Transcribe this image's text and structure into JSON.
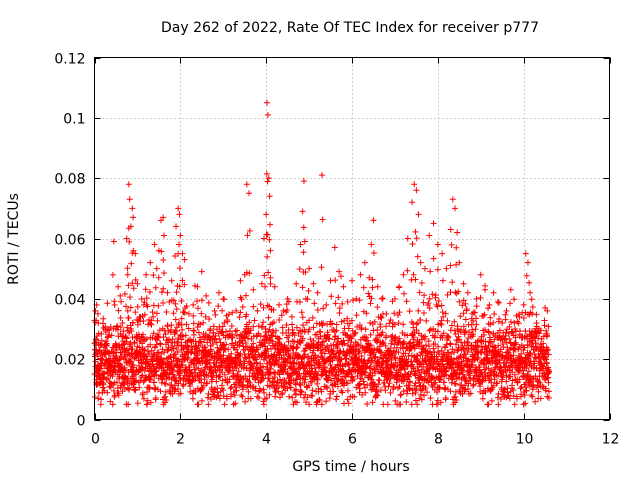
{
  "chart_data": {
    "type": "scatter",
    "title": "Day 262 of 2022, Rate Of TEC Index for receiver p777",
    "xlabel": "GPS time / hours",
    "ylabel": "ROTI / TECUs",
    "xlim": [
      0,
      12
    ],
    "ylim": [
      0,
      0.12
    ],
    "x_ticks": [
      "0",
      "2",
      "4",
      "6",
      "8",
      "10",
      "12"
    ],
    "y_ticks": [
      "0",
      "0.02",
      "0.04",
      "0.06",
      "0.08",
      "0.1",
      "0.12"
    ],
    "grid": true,
    "marker": "+",
    "marker_color": "#ff0000",
    "x_range_of_points": [
      0,
      10.6
    ],
    "series": [
      {
        "name": "ROTI",
        "points": [
          [
            0.02,
            0.036
          ],
          [
            0.05,
            0.038
          ],
          [
            0.08,
            0.035
          ],
          [
            0.1,
            0.016
          ],
          [
            0.15,
            0.02
          ],
          [
            0.2,
            0.012
          ],
          [
            0.25,
            0.025
          ],
          [
            0.3,
            0.018
          ],
          [
            0.35,
            0.022
          ],
          [
            0.45,
            0.059
          ],
          [
            0.5,
            0.03
          ],
          [
            0.55,
            0.044
          ],
          [
            0.6,
            0.041
          ],
          [
            0.65,
            0.032
          ],
          [
            0.7,
            0.025
          ],
          [
            0.75,
            0.06
          ],
          [
            0.8,
            0.078
          ],
          [
            0.82,
            0.073
          ],
          [
            0.85,
            0.064
          ],
          [
            0.88,
            0.07
          ],
          [
            0.9,
            0.067
          ],
          [
            0.95,
            0.055
          ],
          [
            1.0,
            0.045
          ],
          [
            1.05,
            0.034
          ],
          [
            1.1,
            0.04
          ],
          [
            1.15,
            0.038
          ],
          [
            1.2,
            0.048
          ],
          [
            1.3,
            0.052
          ],
          [
            1.4,
            0.058
          ],
          [
            1.45,
            0.05
          ],
          [
            1.5,
            0.056
          ],
          [
            1.55,
            0.066
          ],
          [
            1.6,
            0.067
          ],
          [
            1.62,
            0.061
          ],
          [
            1.7,
            0.042
          ],
          [
            1.8,
            0.046
          ],
          [
            1.9,
            0.064
          ],
          [
            1.95,
            0.07
          ],
          [
            1.98,
            0.068
          ],
          [
            2.0,
            0.061
          ],
          [
            2.05,
            0.055
          ],
          [
            2.1,
            0.053
          ],
          [
            2.2,
            0.035
          ],
          [
            2.3,
            0.038
          ],
          [
            2.4,
            0.044
          ],
          [
            2.5,
            0.049
          ],
          [
            2.6,
            0.041
          ],
          [
            2.7,
            0.03
          ],
          [
            2.8,
            0.036
          ],
          [
            2.9,
            0.042
          ],
          [
            3.0,
            0.04
          ],
          [
            3.1,
            0.033
          ],
          [
            3.2,
            0.031
          ],
          [
            3.3,
            0.036
          ],
          [
            3.4,
            0.046
          ],
          [
            3.5,
            0.048
          ],
          [
            3.55,
            0.078
          ],
          [
            3.6,
            0.075
          ],
          [
            3.7,
            0.043
          ],
          [
            3.8,
            0.036
          ],
          [
            3.9,
            0.045
          ],
          [
            3.95,
            0.06
          ],
          [
            4.0,
            0.068
          ],
          [
            4.02,
            0.105
          ],
          [
            4.04,
            0.101
          ],
          [
            4.06,
            0.08
          ],
          [
            4.08,
            0.074
          ],
          [
            4.1,
            0.056
          ],
          [
            4.2,
            0.044
          ],
          [
            4.3,
            0.038
          ],
          [
            4.4,
            0.036
          ],
          [
            4.5,
            0.04
          ],
          [
            4.6,
            0.034
          ],
          [
            4.7,
            0.045
          ],
          [
            4.8,
            0.058
          ],
          [
            4.85,
            0.069
          ],
          [
            4.88,
            0.079
          ],
          [
            4.9,
            0.059
          ],
          [
            5.0,
            0.05
          ],
          [
            5.1,
            0.045
          ],
          [
            5.2,
            0.042
          ],
          [
            5.3,
            0.081
          ],
          [
            5.4,
            0.038
          ],
          [
            5.5,
            0.046
          ],
          [
            5.6,
            0.057
          ],
          [
            5.7,
            0.049
          ],
          [
            5.8,
            0.044
          ],
          [
            5.9,
            0.039
          ],
          [
            6.0,
            0.046
          ],
          [
            6.1,
            0.04
          ],
          [
            6.2,
            0.048
          ],
          [
            6.3,
            0.052
          ],
          [
            6.4,
            0.047
          ],
          [
            6.45,
            0.058
          ],
          [
            6.5,
            0.066
          ],
          [
            6.6,
            0.044
          ],
          [
            6.7,
            0.04
          ],
          [
            6.8,
            0.035
          ],
          [
            6.9,
            0.033
          ],
          [
            7.0,
            0.04
          ],
          [
            7.1,
            0.044
          ],
          [
            7.2,
            0.048
          ],
          [
            7.3,
            0.06
          ],
          [
            7.4,
            0.072
          ],
          [
            7.45,
            0.078
          ],
          [
            7.5,
            0.076
          ],
          [
            7.55,
            0.068
          ],
          [
            7.6,
            0.052
          ],
          [
            7.7,
            0.05
          ],
          [
            7.8,
            0.061
          ],
          [
            7.9,
            0.065
          ],
          [
            8.0,
            0.058
          ],
          [
            8.1,
            0.055
          ],
          [
            8.2,
            0.05
          ],
          [
            8.3,
            0.063
          ],
          [
            8.35,
            0.073
          ],
          [
            8.4,
            0.07
          ],
          [
            8.45,
            0.062
          ],
          [
            8.5,
            0.052
          ],
          [
            8.6,
            0.045
          ],
          [
            8.7,
            0.042
          ],
          [
            8.8,
            0.035
          ],
          [
            8.9,
            0.04
          ],
          [
            9.0,
            0.048
          ],
          [
            9.1,
            0.043
          ],
          [
            9.2,
            0.038
          ],
          [
            9.3,
            0.042
          ],
          [
            9.4,
            0.039
          ],
          [
            9.5,
            0.032
          ],
          [
            9.6,
            0.036
          ],
          [
            9.7,
            0.043
          ],
          [
            9.8,
            0.03
          ],
          [
            9.9,
            0.034
          ],
          [
            10.0,
            0.038
          ],
          [
            10.05,
            0.055
          ],
          [
            10.1,
            0.052
          ],
          [
            10.15,
            0.042
          ],
          [
            10.2,
            0.035
          ],
          [
            10.3,
            0.032
          ],
          [
            10.4,
            0.025
          ],
          [
            10.5,
            0.037
          ],
          [
            10.55,
            0.036
          ]
        ],
        "dense_band": {
          "x_range": [
            0,
            10.6
          ],
          "y_range": [
            0.005,
            0.035
          ],
          "typical": 0.018
        }
      }
    ]
  }
}
